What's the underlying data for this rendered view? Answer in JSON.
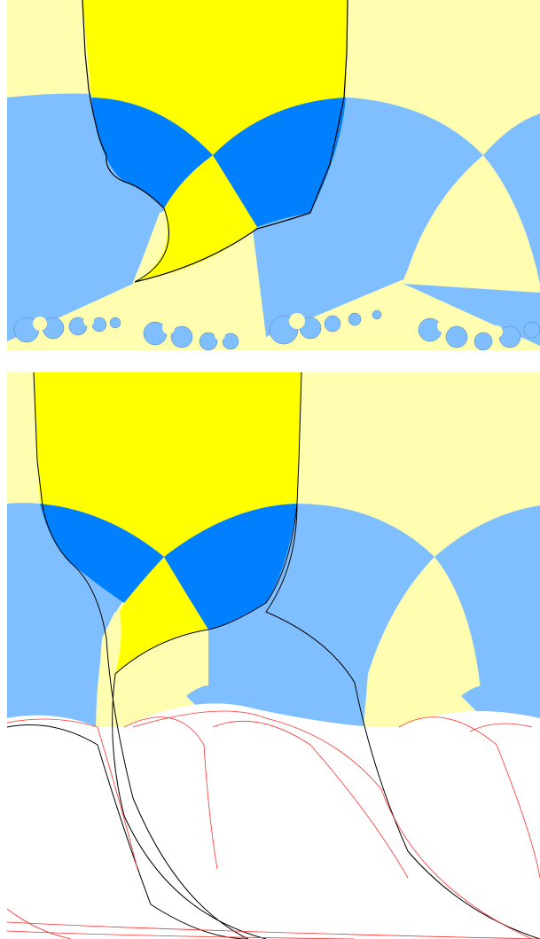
{
  "figure": {
    "description_panels": [
      "top",
      "bottom"
    ],
    "colors": {
      "pale_yellow": "#fffdb0",
      "bright_yellow": "#ffff00",
      "light_blue": "#80bfff",
      "dark_blue": "#0080ff",
      "boundary": "#000000",
      "red_curves": "#ff3030",
      "background": "#ffffff"
    }
  }
}
